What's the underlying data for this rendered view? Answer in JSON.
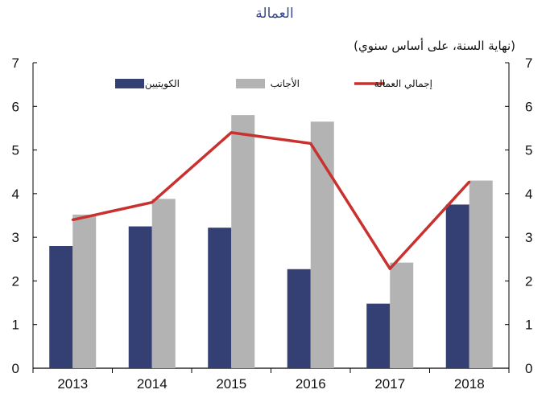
{
  "chart_data": {
    "type": "bar",
    "title": "العمالة",
    "subtitle": "(نهاية السنة، على أساس سنوي)",
    "categories": [
      "2013",
      "2014",
      "2015",
      "2016",
      "2017",
      "2018"
    ],
    "series": [
      {
        "name": "الكويتيين",
        "kind": "bar",
        "color": "#343f73",
        "values": [
          2.8,
          3.25,
          3.22,
          2.27,
          1.48,
          3.75
        ]
      },
      {
        "name": "الأجانب",
        "kind": "bar",
        "color": "#b3b3b3",
        "values": [
          3.52,
          3.88,
          5.8,
          5.65,
          2.42,
          4.3
        ]
      },
      {
        "name": "إجمالي العمالة",
        "kind": "line",
        "color": "#c8312f",
        "values": [
          3.4,
          3.8,
          5.4,
          5.15,
          2.28,
          4.27
        ]
      }
    ],
    "ylim": [
      0,
      7
    ],
    "yticks": [
      "0",
      "1",
      "2",
      "3",
      "4",
      "5",
      "6",
      "7"
    ],
    "grid": false,
    "legend_position": "top"
  }
}
